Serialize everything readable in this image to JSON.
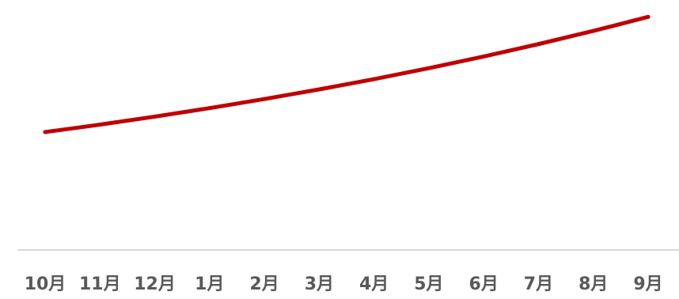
{
  "chart_data": {
    "type": "line",
    "categories": [
      "10月",
      "11月",
      "12月",
      "1月",
      "2月",
      "3月",
      "4月",
      "5月",
      "6月",
      "7月",
      "8月",
      "9月"
    ],
    "series": [
      {
        "values": [
          100,
          106.3,
          113.1,
          120.3,
          128.0,
          136.2,
          144.9,
          154.2,
          164.1,
          174.6,
          185.8,
          197.7
        ]
      }
    ],
    "ylim": [
      0,
      212
    ],
    "grid": false,
    "colors": {
      "line": "#c00000",
      "axis": "#d9d9d9",
      "tick_label": "#595959"
    }
  }
}
